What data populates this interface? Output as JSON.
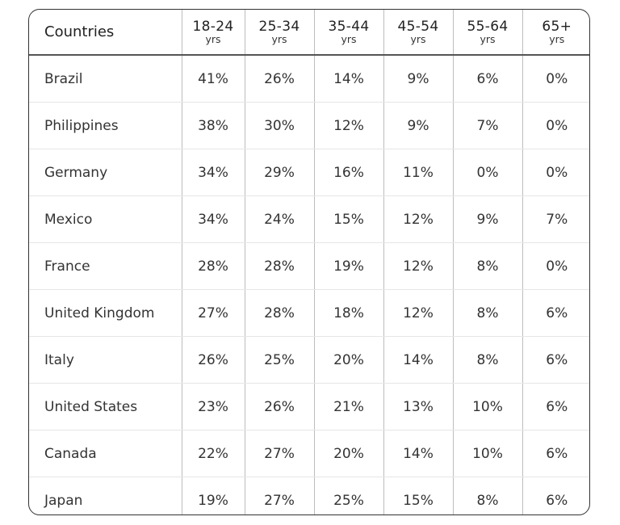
{
  "table": {
    "country_header": "Countries",
    "age_groups": [
      {
        "range": "18-24",
        "unit": "yrs"
      },
      {
        "range": "25-34",
        "unit": "yrs"
      },
      {
        "range": "35-44",
        "unit": "yrs"
      },
      {
        "range": "45-54",
        "unit": "yrs"
      },
      {
        "range": "55-64",
        "unit": "yrs"
      },
      {
        "range": "65+",
        "unit": "yrs"
      }
    ],
    "rows": [
      {
        "country": "Brazil",
        "values": [
          "41%",
          "26%",
          "14%",
          "9%",
          "6%",
          "0%"
        ]
      },
      {
        "country": "Philippines",
        "values": [
          "38%",
          "30%",
          "12%",
          "9%",
          "7%",
          "0%"
        ]
      },
      {
        "country": "Germany",
        "values": [
          "34%",
          "29%",
          "16%",
          "11%",
          "0%",
          "0%"
        ]
      },
      {
        "country": "Mexico",
        "values": [
          "34%",
          "24%",
          "15%",
          "12%",
          "9%",
          "7%"
        ]
      },
      {
        "country": "France",
        "values": [
          "28%",
          "28%",
          "19%",
          "12%",
          "8%",
          "0%"
        ]
      },
      {
        "country": "United Kingdom",
        "values": [
          "27%",
          "28%",
          "18%",
          "12%",
          "8%",
          "6%"
        ]
      },
      {
        "country": "Italy",
        "values": [
          "26%",
          "25%",
          "20%",
          "14%",
          "8%",
          "6%"
        ]
      },
      {
        "country": "United States",
        "values": [
          "23%",
          "26%",
          "21%",
          "13%",
          "10%",
          "6%"
        ]
      },
      {
        "country": "Canada",
        "values": [
          "22%",
          "27%",
          "20%",
          "14%",
          "10%",
          "6%"
        ]
      },
      {
        "country": "Japan",
        "values": [
          "19%",
          "27%",
          "25%",
          "15%",
          "8%",
          "6%"
        ]
      }
    ]
  }
}
